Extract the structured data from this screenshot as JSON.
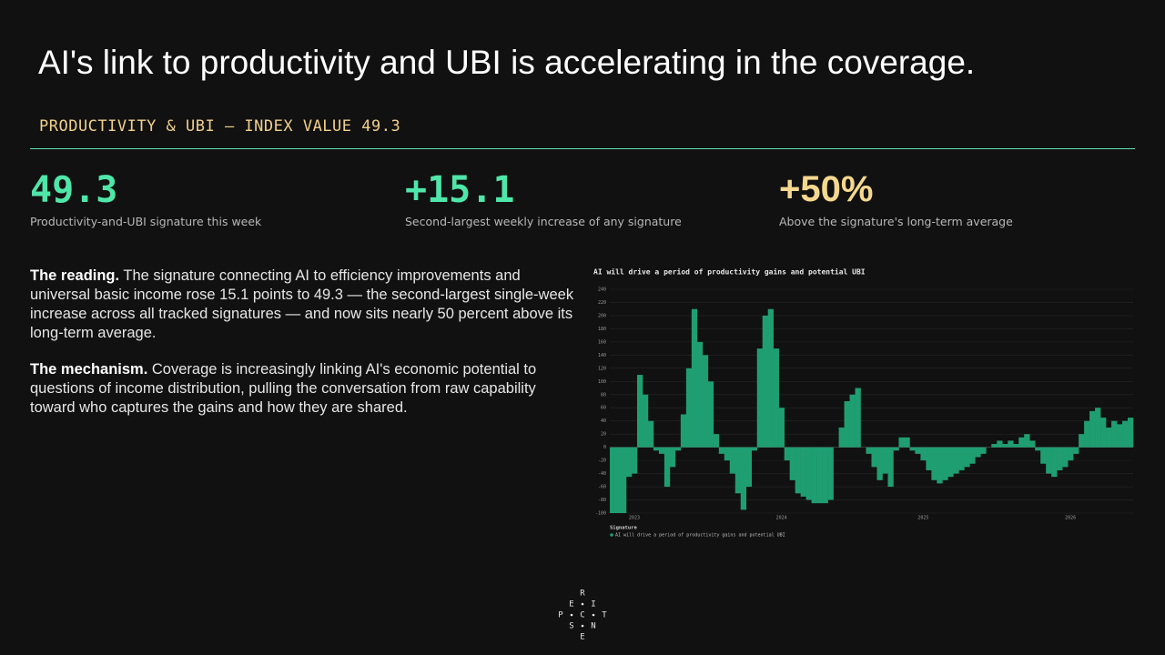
{
  "title": "AI's link to productivity and UBI is accelerating in the coverage.",
  "kicker": "PRODUCTIVITY & UBI — INDEX VALUE 49.3",
  "stats": [
    {
      "value": "49.3",
      "label": "Productivity-and-UBI signature this week"
    },
    {
      "value": "+15.1",
      "label": "Second-largest weekly increase of any signature"
    },
    {
      "value": "+50%",
      "label": "Above the signature's long-term average"
    }
  ],
  "paragraphs": [
    {
      "lead": "The reading.",
      "text": "The signature connecting AI to efficiency improvements and universal basic income rose 15.1 points to 49.3 — the second-largest single-week increase across all tracked signatures — and now sits nearly 50 percent above its long-term average."
    },
    {
      "lead": "The mechanism.",
      "text": "Coverage is increasingly linking AI's economic potential to questions of income distribution, pulling the conversation from raw capability toward who captures the gains and how they are shared."
    }
  ],
  "logo": [
    "R",
    "E",
    "I",
    "P",
    "C",
    "T",
    "S",
    "N",
    "E"
  ],
  "chart_data": {
    "type": "area",
    "title": "AI will drive a period of productivity gains and potential UBI",
    "legend_title": "Signature",
    "categories": [
      null,
      null,
      null,
      null,
      "2023",
      null,
      null,
      null,
      null,
      null,
      null,
      null,
      null,
      null,
      null,
      null,
      null,
      null,
      null,
      null,
      null,
      null,
      null,
      null,
      null,
      null,
      null,
      null,
      null,
      null,
      null,
      "2024",
      null,
      null,
      null,
      null,
      null,
      null,
      null,
      null,
      null,
      null,
      null,
      null,
      null,
      null,
      null,
      null,
      null,
      null,
      null,
      null,
      null,
      null,
      null,
      null,
      null,
      "2025",
      null,
      null,
      null,
      null,
      null,
      null,
      null,
      null,
      null,
      null,
      null,
      null,
      null,
      null,
      null,
      null,
      null,
      null,
      null,
      null,
      null,
      null,
      null,
      null,
      null,
      null,
      "2026",
      null,
      null,
      null,
      null,
      null,
      null,
      null,
      null,
      null,
      null,
      null
    ],
    "series": [
      {
        "name": "AI will drive a period of productivity gains and potential UBI",
        "color": "#1f9e72",
        "values": [
          -100,
          -100,
          -100,
          -45,
          -40,
          110,
          80,
          40,
          -5,
          -10,
          -60,
          -30,
          -5,
          50,
          120,
          210,
          160,
          140,
          100,
          20,
          -10,
          -20,
          -40,
          -70,
          -95,
          -60,
          -5,
          150,
          200,
          210,
          150,
          60,
          -20,
          -50,
          -70,
          -75,
          -80,
          -85,
          -85,
          -85,
          -80,
          0,
          30,
          70,
          80,
          90,
          0,
          -10,
          -30,
          -50,
          -40,
          -60,
          -5,
          15,
          15,
          -5,
          -10,
          -20,
          -35,
          -50,
          -55,
          -50,
          -45,
          -40,
          -35,
          -30,
          -25,
          -15,
          -10,
          0,
          5,
          10,
          5,
          10,
          5,
          15,
          20,
          10,
          -5,
          -25,
          -40,
          -45,
          -35,
          -30,
          -20,
          -10,
          20,
          40,
          55,
          60,
          45,
          30,
          40,
          35,
          40,
          45
        ]
      }
    ],
    "ylim": [
      -100,
      240
    ],
    "yticks": [
      -100,
      -80,
      -60,
      -40,
      -20,
      0,
      20,
      40,
      60,
      80,
      100,
      120,
      140,
      160,
      180,
      200,
      220,
      240
    ],
    "grid": true
  }
}
